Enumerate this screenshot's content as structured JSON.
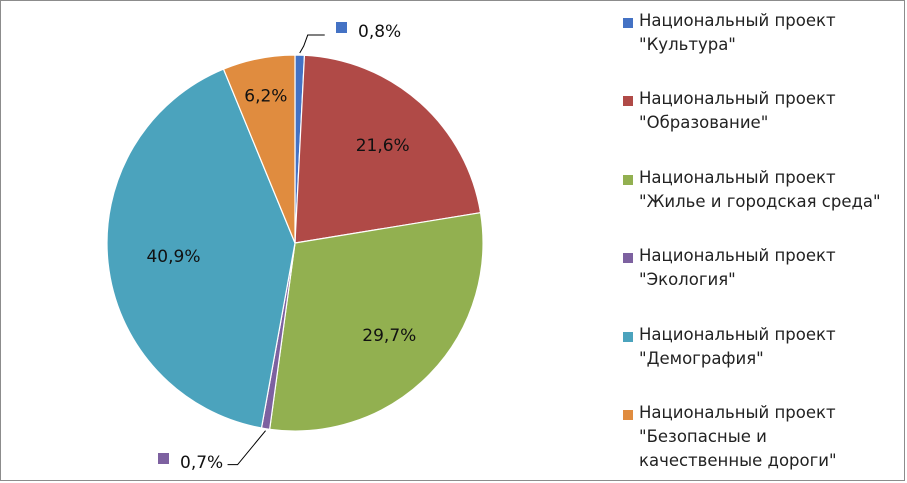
{
  "chart_data": {
    "type": "pie",
    "title": "",
    "labels": [
      "Национальный проект\n\"Культура\"",
      "Национальный проект\n\"Образование\"",
      "Национальный проект\n\"Жилье и городская среда\"",
      "Национальный проект\n\"Экология\"",
      "Национальный проект\n\"Демография\"",
      "Национальный проект\n\"Безопасные и\nкачественные дороги\""
    ],
    "values": [
      0.8,
      21.6,
      29.7,
      0.7,
      40.9,
      6.2
    ],
    "value_labels": [
      "0,8%",
      "21,6%",
      "29,7%",
      "0,7%",
      "40,9%",
      "6,2%"
    ],
    "colors": [
      "#4472c4",
      "#b04a47",
      "#92b050",
      "#7d61a0",
      "#4ba3bd",
      "#e08c3f"
    ],
    "legend_position": "right",
    "start_angle": "12 o'clock",
    "direction": "clockwise"
  }
}
